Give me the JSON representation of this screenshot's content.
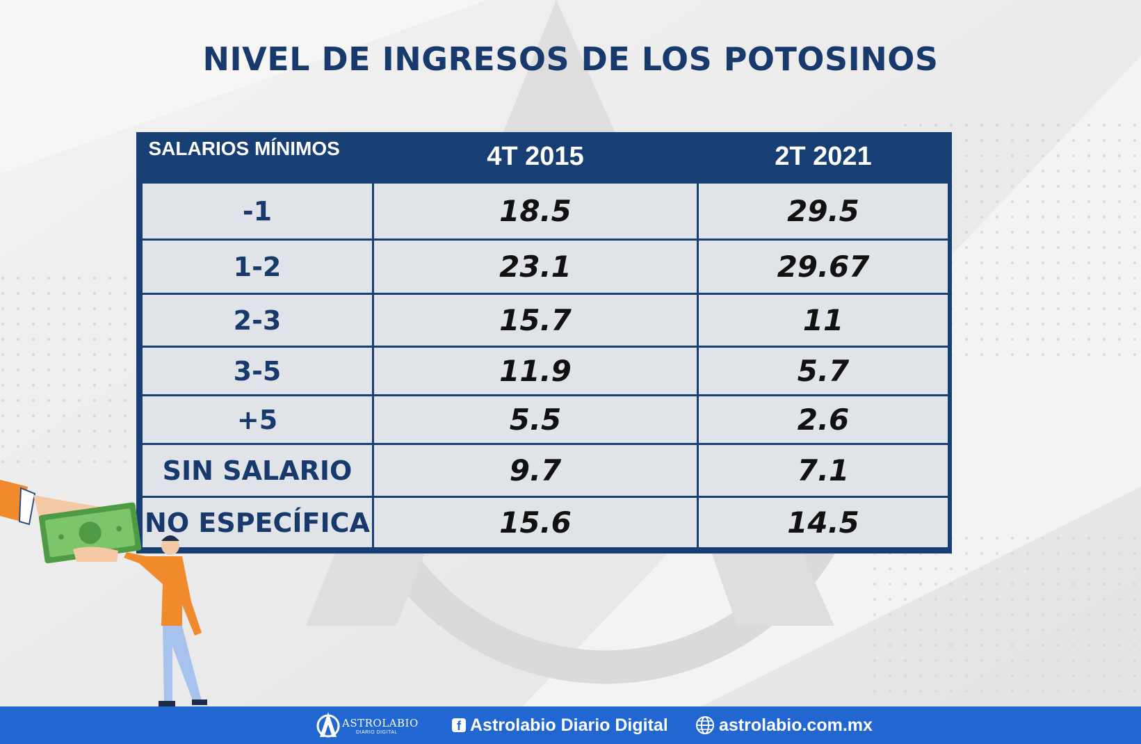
{
  "title": "NIVEL DE INGRESOS DE LOS POTOSINOS",
  "chart_data": {
    "type": "table",
    "title": "NIVEL DE INGRESOS DE LOS POTOSINOS",
    "columns": [
      "SALARIOS MÍNIMOS",
      "4T 2015",
      "2T 2021"
    ],
    "rows": [
      {
        "category": "-1",
        "values": [
          "18.5",
          "29.5"
        ]
      },
      {
        "category": "1-2",
        "values": [
          "23.1",
          "29.67"
        ]
      },
      {
        "category": "2-3",
        "values": [
          "15.7",
          "11"
        ]
      },
      {
        "category": "3-5",
        "values": [
          "11.9",
          "5.7"
        ]
      },
      {
        "category": "+5",
        "values": [
          "5.5",
          "2.6"
        ]
      },
      {
        "category": "SIN SALARIO",
        "values": [
          "9.7",
          "7.1"
        ]
      },
      {
        "category": "NO ESPECÍFICA",
        "values": [
          "15.6",
          "14.5"
        ]
      }
    ]
  },
  "footer": {
    "logo_text": "ASTROLABIO",
    "logo_subtext": "DIARIO DIGITAL",
    "facebook_label": "Astrolabio Diario Digital",
    "website": "astrolabio.com.mx"
  },
  "colors": {
    "navy": "#173f73",
    "footer_blue": "#2266d1",
    "illustration_orange": "#f08a2c",
    "money_green": "#5aa84a"
  },
  "icons": [
    "astrolabio-logo-icon",
    "facebook-icon",
    "globe-icon",
    "money-hand-illustration",
    "person-illustration"
  ]
}
